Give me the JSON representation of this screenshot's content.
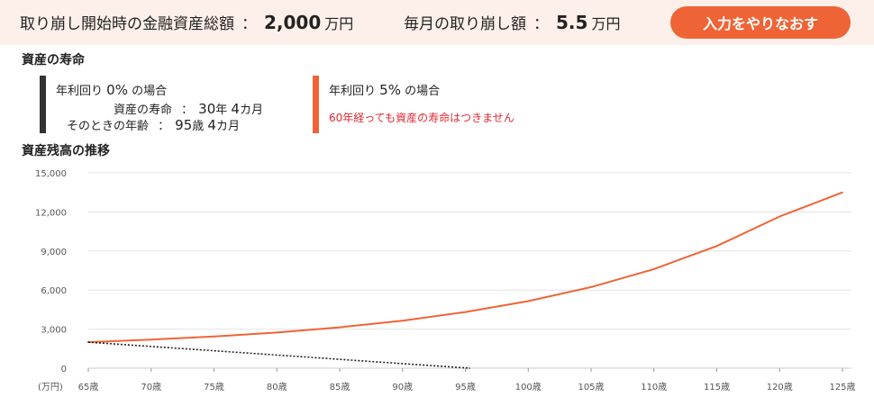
{
  "header": {
    "initial_assets_label": "取り崩し開始時の金融資産総額",
    "separator": "：",
    "initial_assets_value": "2,000",
    "initial_assets_unit": "万円",
    "monthly_withdrawal_label": "毎月の取り崩し額",
    "monthly_withdrawal_value": "5.5",
    "monthly_withdrawal_unit": "万円",
    "retry_button": "入力をやりなおす"
  },
  "lifespan": {
    "title": "資産の寿命",
    "scenario0": {
      "heading_prefix": "年利回り",
      "heading_rate": "0%",
      "heading_suffix": "の場合",
      "lifespan_label": "資産の寿命",
      "lifespan_years": "30",
      "lifespan_years_unit": "年",
      "lifespan_months": "4",
      "lifespan_months_unit": "カ月",
      "age_label": "そのときの年齢",
      "age_years": "95",
      "age_years_unit": "歳",
      "age_months": "4",
      "age_months_unit": "カ月",
      "color": "#333333"
    },
    "scenario5": {
      "heading_prefix": "年利回り",
      "heading_rate": "5%",
      "heading_suffix": "の場合",
      "note": "60年経っても資産の寿命はつきません",
      "color": "#ef6436"
    }
  },
  "chart_section_title": "資産残高の推移",
  "chart_data": {
    "type": "line",
    "x_unit_label": "(万円)",
    "xlim": [
      65,
      125
    ],
    "ylim": [
      0,
      15000
    ],
    "y_ticks": [
      0,
      3000,
      6000,
      9000,
      12000,
      15000
    ],
    "y_tick_labels": [
      "0",
      "3,000",
      "6,000",
      "9,000",
      "12,000",
      "15,000"
    ],
    "x_ticks": [
      65,
      70,
      75,
      80,
      85,
      90,
      95,
      100,
      105,
      110,
      115,
      120,
      125
    ],
    "x_tick_labels": [
      "65歳",
      "70歳",
      "75歳",
      "80歳",
      "85歳",
      "90歳",
      "95歳",
      "100歳",
      "105歳",
      "110歳",
      "115歳",
      "120歳",
      "125歳"
    ],
    "grid": true,
    "series": [
      {
        "style": "solid",
        "color": "#ef6436",
        "x": [
          65,
          70,
          75,
          80,
          85,
          90,
          95,
          100,
          105,
          110,
          115,
          120,
          125
        ],
        "values": [
          2000,
          2190,
          2430,
          2740,
          3140,
          3650,
          4310,
          5150,
          6230,
          7610,
          9380,
          11650,
          13500
        ]
      },
      {
        "style": "dotted",
        "color": "#222222",
        "x": [
          65,
          95.33
        ],
        "values": [
          2000,
          0
        ]
      }
    ]
  }
}
